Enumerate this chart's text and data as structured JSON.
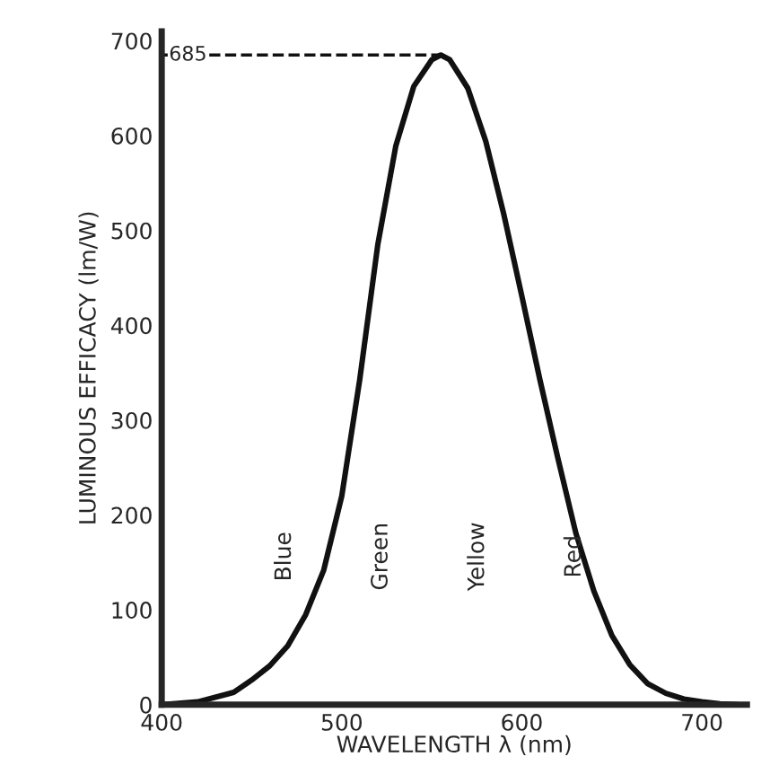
{
  "chart_data": {
    "type": "line",
    "xlabel": "WAVELENGTH λ (nm)",
    "ylabel": "LUMINOUS EFFICACY (lm/W)",
    "x": [
      400,
      420,
      440,
      450,
      460,
      470,
      480,
      490,
      500,
      510,
      520,
      530,
      540,
      550,
      555,
      560,
      570,
      580,
      590,
      600,
      610,
      620,
      630,
      640,
      650,
      660,
      670,
      680,
      690,
      700,
      710,
      720
    ],
    "series": [
      {
        "color": "#111111",
        "values": [
          0,
          3,
          13,
          26,
          41,
          62,
          95,
          142,
          220,
          343,
          485,
          589,
          652,
          680,
          685,
          680,
          650,
          594,
          517,
          431,
          343,
          260,
          181,
          120,
          73,
          42,
          22,
          12,
          6,
          3,
          1,
          0
        ]
      }
    ],
    "xlim": [
      400,
      725
    ],
    "ylim": [
      0,
      710
    ],
    "xticks": [
      400,
      500,
      600,
      700
    ],
    "yticks": [
      0,
      100,
      200,
      300,
      400,
      500,
      600,
      700
    ],
    "ref_lines": [
      {
        "axis": "y",
        "value": 685,
        "label": "685",
        "line_style": "dashed"
      }
    ],
    "annotations": [
      "Blue",
      "Green",
      "Yellow",
      "Red"
    ],
    "grid": false,
    "legend": false,
    "marker": "none",
    "line_style": "solid"
  }
}
